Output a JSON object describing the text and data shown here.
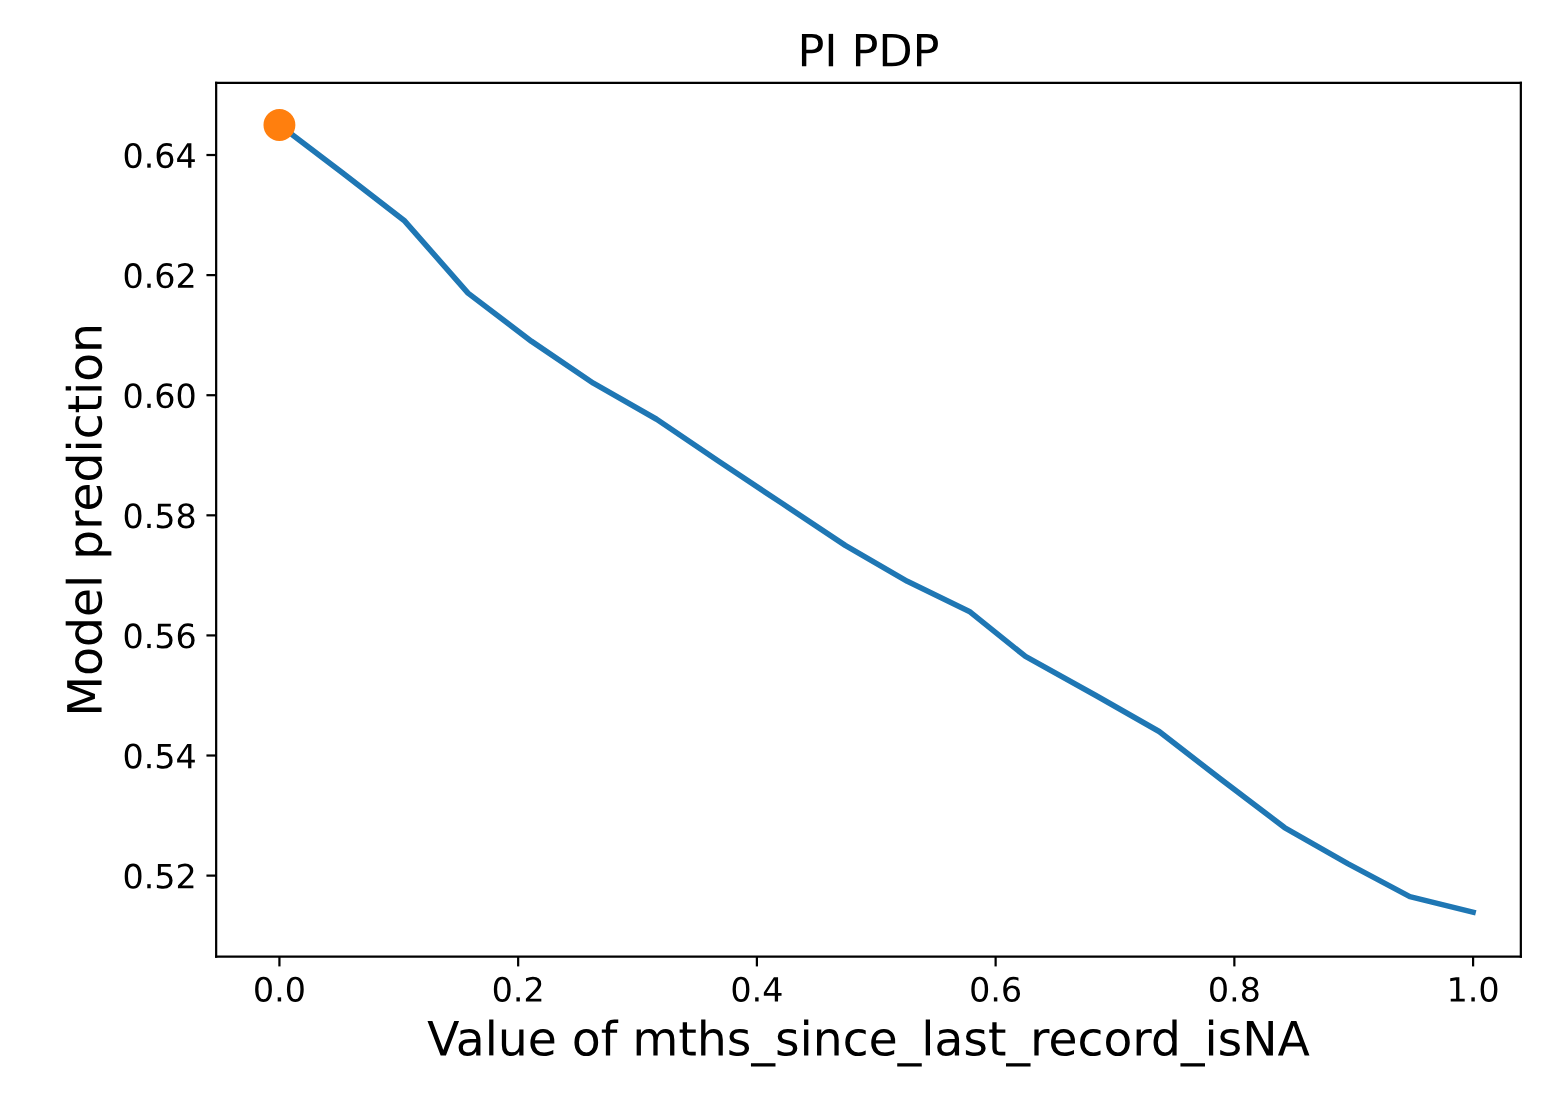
{
  "chart_data": {
    "type": "line",
    "title": "PI PDP",
    "xlabel": "Value of mths_since_last_record_isNA",
    "ylabel": "Model prediction",
    "xlim": [
      -0.053,
      1.04
    ],
    "ylim": [
      0.5065,
      0.652
    ],
    "xticks": [
      {
        "value": 0,
        "label": "0.0"
      },
      0.2,
      0.4,
      0.6,
      0.8,
      {
        "value": 1,
        "label": "1.0"
      }
    ],
    "yticks": [
      0.52,
      0.54,
      0.56,
      0.58,
      {
        "value": 0.6,
        "label": "0.60"
      },
      0.62,
      0.64
    ],
    "grid": false,
    "legend": false,
    "series": [
      {
        "color": "#1f77b4",
        "x": [
          0.0,
          0.053,
          0.105,
          0.158,
          0.211,
          0.263,
          0.316,
          0.368,
          0.421,
          0.474,
          0.526,
          0.578,
          0.625,
          0.684,
          0.737,
          0.789,
          0.842,
          0.895,
          0.947,
          1.0
        ],
        "values": [
          0.645,
          0.637,
          0.629,
          0.617,
          0.609,
          0.602,
          0.596,
          0.589,
          0.582,
          0.575,
          0.569,
          0.564,
          0.5565,
          0.55,
          0.544,
          0.536,
          0.528,
          0.522,
          0.5165,
          0.5139
        ]
      },
      {
        "type": "scatter",
        "color": "#ff7f0e",
        "x": [
          0.0
        ],
        "values": [
          0.645
        ]
      }
    ]
  }
}
